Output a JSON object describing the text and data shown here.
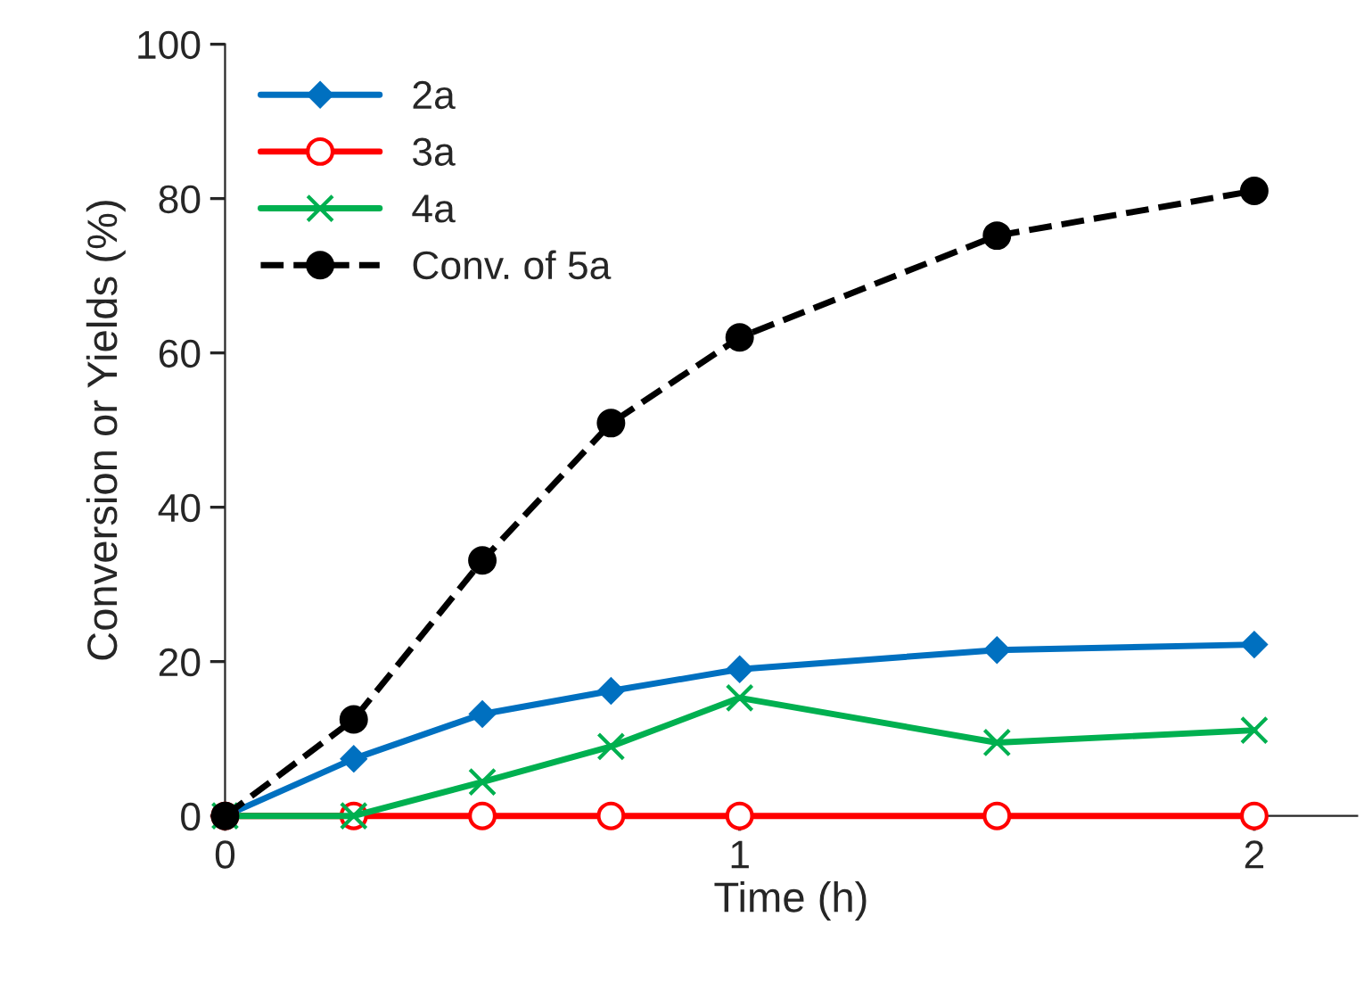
{
  "chart_data": {
    "type": "line",
    "xlabel": "Time (h)",
    "ylabel": "Conversion or Yields (%)",
    "x": [
      0,
      0.25,
      0.5,
      0.75,
      1,
      1.5,
      2
    ],
    "series": [
      {
        "name": "2a",
        "color": "#0070c0",
        "marker": "diamond",
        "line_style": "solid",
        "values": [
          0,
          7.4,
          13.2,
          16.2,
          19,
          21.5,
          22.2
        ]
      },
      {
        "name": "3a",
        "color": "#ff0000",
        "marker": "circle",
        "line_style": "solid",
        "values": [
          0,
          0,
          0,
          0,
          0,
          0,
          0
        ]
      },
      {
        "name": "4a",
        "color": "#00b050",
        "marker": "cross",
        "line_style": "solid",
        "values": [
          0,
          0,
          4.4,
          9,
          15.3,
          9.5,
          11.1
        ]
      },
      {
        "name": "Conv. of 5a",
        "color": "#000000",
        "marker": "circle",
        "line_style": "dashed",
        "values": [
          0,
          12.5,
          33.1,
          50.9,
          62,
          75.2,
          81
        ]
      }
    ],
    "xlim": [
      0,
      2.2
    ],
    "xticks": [
      0,
      1,
      2
    ],
    "ylim": [
      0,
      100
    ],
    "yticks": [
      0,
      20,
      40,
      60,
      80,
      100
    ],
    "grid": false,
    "legend": "top left"
  }
}
